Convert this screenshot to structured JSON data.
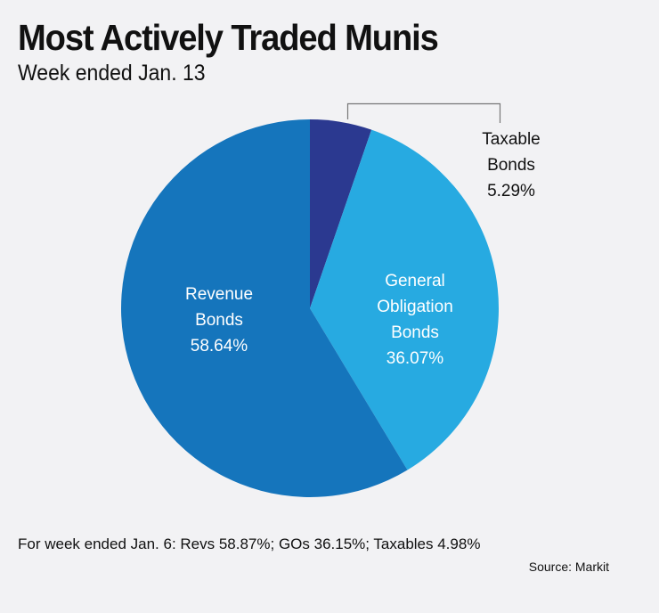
{
  "title": "Most Actively Traded Munis",
  "subtitle": "Week ended Jan. 13",
  "chart_data": {
    "type": "pie",
    "title": "Most Actively Traded Munis",
    "subtitle": "Week ended Jan. 13",
    "slices": [
      {
        "label_lines": [
          "Taxable",
          "Bonds"
        ],
        "value": 5.29,
        "value_label": "5.29%",
        "color": "#2b3990"
      },
      {
        "label_lines": [
          "General",
          "Obligation",
          "Bonds"
        ],
        "value": 36.07,
        "value_label": "36.07%",
        "color": "#27aae1"
      },
      {
        "label_lines": [
          "Revenue",
          "Bonds"
        ],
        "value": 58.64,
        "value_label": "58.64%",
        "color": "#1575bc"
      }
    ],
    "start_angle_deg": 0,
    "direction": "clockwise"
  },
  "footnote": "For week ended Jan. 6: Revs 58.87%; GOs 36.15%; Taxables 4.98%",
  "source": "Source: Markit"
}
